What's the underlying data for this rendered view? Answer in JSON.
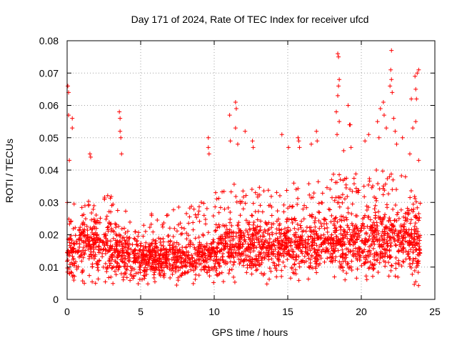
{
  "chart_data": {
    "type": "scatter",
    "title": "Day 171 of 2024, Rate Of TEC Index for receiver ufcd",
    "xlabel": "GPS time / hours",
    "ylabel": "ROTI / TECUs",
    "xlim": [
      0,
      25
    ],
    "ylim": [
      0,
      0.08
    ],
    "xticks": [
      "0",
      "5",
      "10",
      "15",
      "20",
      "25"
    ],
    "yticks": [
      "0",
      "0.01",
      "0.02",
      "0.03",
      "0.04",
      "0.05",
      "0.06",
      "0.07",
      "0.08"
    ],
    "xtick_values": [
      0,
      5,
      10,
      15,
      20,
      25
    ],
    "ytick_values": [
      0,
      0.01,
      0.02,
      0.03,
      0.04,
      0.05,
      0.06,
      0.07,
      0.08
    ],
    "grid": true,
    "marker": "+",
    "series_color": "#ff0000",
    "series": [
      {
        "name": "ROTI",
        "envelope": {
          "hours": [
            0,
            1,
            2,
            3,
            4,
            5,
            6,
            7,
            8,
            9,
            10,
            11,
            12,
            13,
            14,
            15,
            16,
            17,
            18,
            19,
            20,
            21,
            22,
            23,
            24
          ],
          "median": [
            0.014,
            0.015,
            0.016,
            0.015,
            0.013,
            0.012,
            0.012,
            0.013,
            0.012,
            0.013,
            0.014,
            0.016,
            0.016,
            0.016,
            0.015,
            0.016,
            0.016,
            0.017,
            0.017,
            0.017,
            0.017,
            0.018,
            0.018,
            0.018,
            0.016
          ],
          "upper": [
            0.032,
            0.03,
            0.031,
            0.033,
            0.028,
            0.024,
            0.028,
            0.03,
            0.028,
            0.03,
            0.033,
            0.037,
            0.036,
            0.036,
            0.033,
            0.036,
            0.036,
            0.038,
            0.04,
            0.04,
            0.039,
            0.043,
            0.044,
            0.04,
            0.035
          ],
          "lower": [
            0.004,
            0.004,
            0.004,
            0.004,
            0.004,
            0.004,
            0.004,
            0.004,
            0.004,
            0.004,
            0.004,
            0.005,
            0.005,
            0.005,
            0.004,
            0.005,
            0.005,
            0.005,
            0.006,
            0.005,
            0.005,
            0.005,
            0.005,
            0.005,
            0.004
          ]
        },
        "outliers": [
          {
            "x": 0.05,
            "y": 0.066
          },
          {
            "x": 0.1,
            "y": 0.064
          },
          {
            "x": 0.1,
            "y": 0.057
          },
          {
            "x": 0.35,
            "y": 0.056
          },
          {
            "x": 0.35,
            "y": 0.053
          },
          {
            "x": 0.15,
            "y": 0.043
          },
          {
            "x": 1.55,
            "y": 0.045
          },
          {
            "x": 1.6,
            "y": 0.044
          },
          {
            "x": 3.55,
            "y": 0.058
          },
          {
            "x": 3.6,
            "y": 0.056
          },
          {
            "x": 3.6,
            "y": 0.052
          },
          {
            "x": 3.65,
            "y": 0.05
          },
          {
            "x": 3.7,
            "y": 0.045
          },
          {
            "x": 9.6,
            "y": 0.05
          },
          {
            "x": 9.6,
            "y": 0.047
          },
          {
            "x": 9.65,
            "y": 0.045
          },
          {
            "x": 11.05,
            "y": 0.057
          },
          {
            "x": 11.45,
            "y": 0.061
          },
          {
            "x": 11.5,
            "y": 0.059
          },
          {
            "x": 11.45,
            "y": 0.053
          },
          {
            "x": 11.1,
            "y": 0.049
          },
          {
            "x": 11.6,
            "y": 0.048
          },
          {
            "x": 12.1,
            "y": 0.052
          },
          {
            "x": 12.6,
            "y": 0.049
          },
          {
            "x": 12.65,
            "y": 0.047
          },
          {
            "x": 14.6,
            "y": 0.051
          },
          {
            "x": 15.05,
            "y": 0.047
          },
          {
            "x": 15.7,
            "y": 0.05
          },
          {
            "x": 15.75,
            "y": 0.049
          },
          {
            "x": 15.8,
            "y": 0.047
          },
          {
            "x": 16.6,
            "y": 0.048
          },
          {
            "x": 16.95,
            "y": 0.052
          },
          {
            "x": 17.0,
            "y": 0.049
          },
          {
            "x": 18.4,
            "y": 0.076
          },
          {
            "x": 18.45,
            "y": 0.075
          },
          {
            "x": 18.5,
            "y": 0.068
          },
          {
            "x": 18.45,
            "y": 0.066
          },
          {
            "x": 18.4,
            "y": 0.063
          },
          {
            "x": 18.3,
            "y": 0.058
          },
          {
            "x": 18.5,
            "y": 0.055
          },
          {
            "x": 18.35,
            "y": 0.051
          },
          {
            "x": 18.8,
            "y": 0.046
          },
          {
            "x": 19.2,
            "y": 0.054
          },
          {
            "x": 19.25,
            "y": 0.054
          },
          {
            "x": 19.1,
            "y": 0.06
          },
          {
            "x": 19.3,
            "y": 0.047
          },
          {
            "x": 20.25,
            "y": 0.049
          },
          {
            "x": 20.5,
            "y": 0.051
          },
          {
            "x": 21.1,
            "y": 0.055
          },
          {
            "x": 21.3,
            "y": 0.059
          },
          {
            "x": 21.5,
            "y": 0.061
          },
          {
            "x": 21.55,
            "y": 0.057
          },
          {
            "x": 21.7,
            "y": 0.053
          },
          {
            "x": 21.2,
            "y": 0.05
          },
          {
            "x": 22.05,
            "y": 0.077
          },
          {
            "x": 22.0,
            "y": 0.071
          },
          {
            "x": 22.05,
            "y": 0.068
          },
          {
            "x": 21.95,
            "y": 0.066
          },
          {
            "x": 22.1,
            "y": 0.064
          },
          {
            "x": 22.2,
            "y": 0.056
          },
          {
            "x": 22.3,
            "y": 0.052
          },
          {
            "x": 22.4,
            "y": 0.048
          },
          {
            "x": 22.8,
            "y": 0.05
          },
          {
            "x": 23.4,
            "y": 0.062
          },
          {
            "x": 23.65,
            "y": 0.069
          },
          {
            "x": 23.7,
            "y": 0.065
          },
          {
            "x": 23.75,
            "y": 0.062
          },
          {
            "x": 23.7,
            "y": 0.055
          },
          {
            "x": 23.8,
            "y": 0.07
          },
          {
            "x": 23.9,
            "y": 0.071
          },
          {
            "x": 23.5,
            "y": 0.053
          },
          {
            "x": 23.3,
            "y": 0.045
          },
          {
            "x": 23.9,
            "y": 0.043
          }
        ]
      }
    ]
  }
}
